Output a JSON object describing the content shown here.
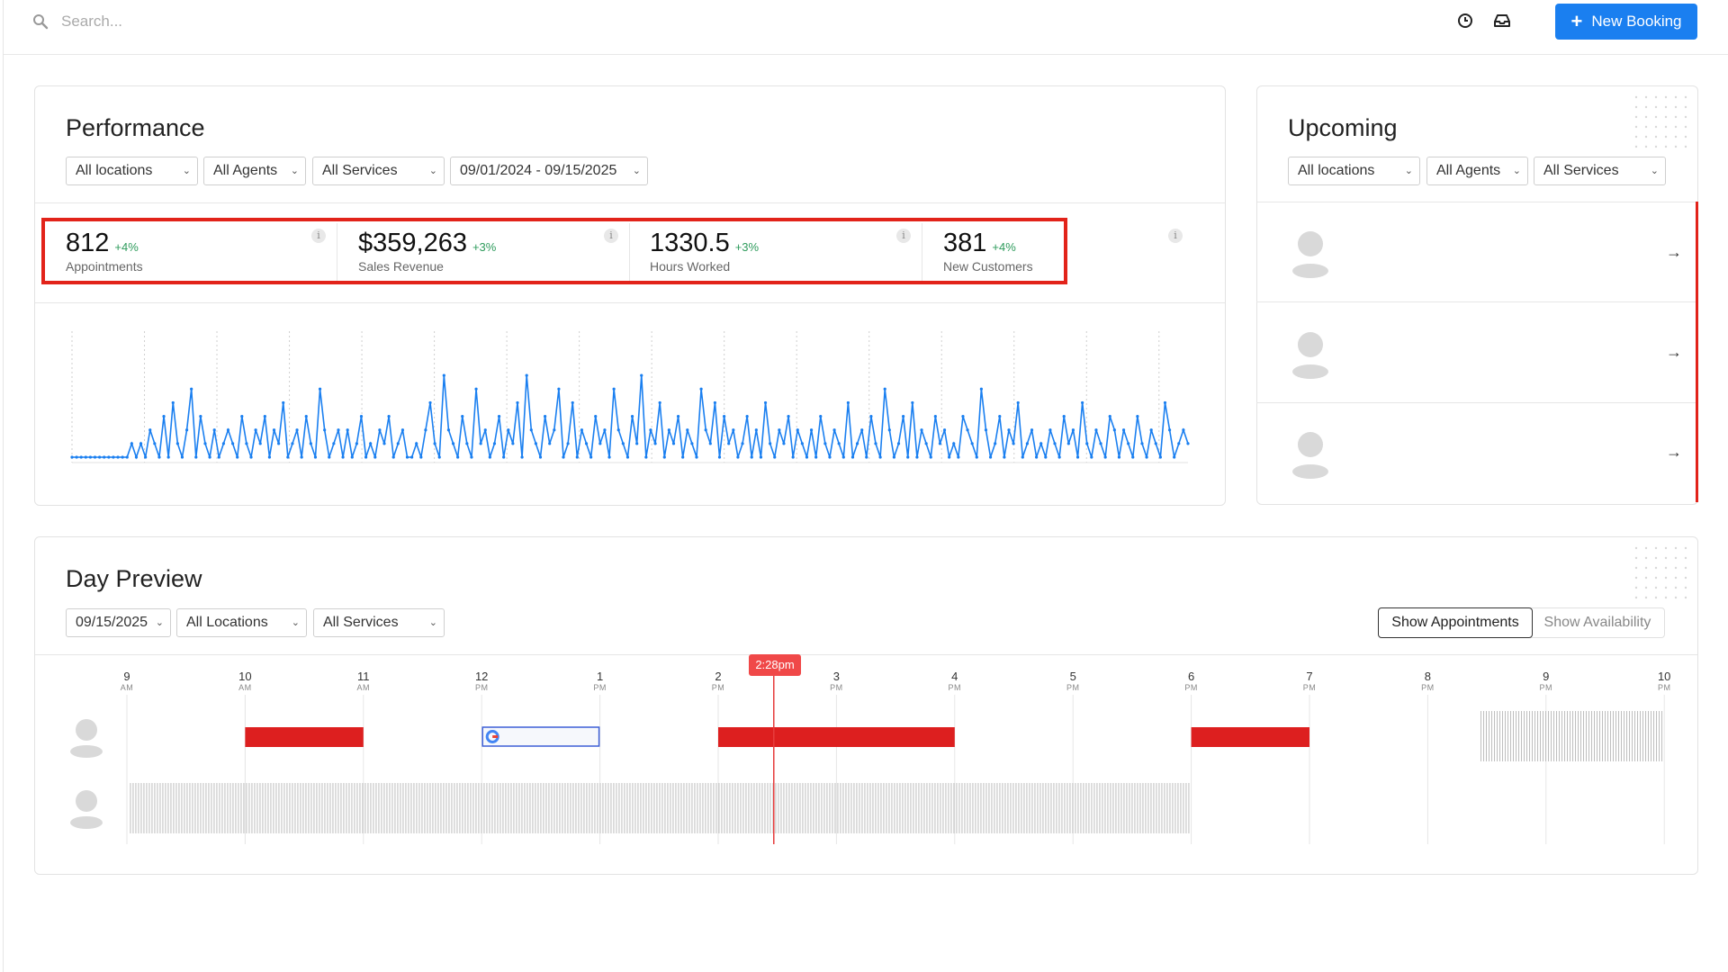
{
  "topbar": {
    "search_placeholder": "Search...",
    "icons": [
      "search-icon",
      "clock-icon",
      "inbox-icon"
    ],
    "new_booking_label": "New Booking"
  },
  "performance": {
    "title": "Performance",
    "filters": [
      "All locations",
      "All Agents",
      "All Services",
      "09/01/2024 - 09/15/2025"
    ],
    "stats": [
      {
        "value": "812",
        "delta": "+4%",
        "label": "Appointments"
      },
      {
        "value": "$359,263",
        "delta": "+3%",
        "label": "Sales Revenue"
      },
      {
        "value": "1330.5",
        "delta": "+3%",
        "label": "Hours Worked"
      },
      {
        "value": "381",
        "delta": "+4%",
        "label": "New Customers"
      }
    ],
    "info_glyph": "i"
  },
  "chart_data": {
    "type": "line",
    "title": "",
    "xlabel": "",
    "ylabel": "",
    "grid": true,
    "series_color": "#1a7ff0",
    "values": [
      0,
      0,
      0,
      0,
      0,
      0,
      0,
      0,
      0,
      0,
      0,
      0,
      0,
      1,
      0,
      1,
      0,
      2,
      1,
      0,
      3,
      0,
      4,
      1,
      0,
      2,
      5,
      0,
      3,
      1,
      0,
      2,
      0,
      1,
      2,
      1,
      0,
      3,
      1,
      0,
      2,
      1,
      3,
      0,
      2,
      1,
      4,
      0,
      1,
      2,
      0,
      3,
      1,
      0,
      5,
      2,
      0,
      1,
      2,
      0,
      2,
      0,
      1,
      3,
      0,
      1,
      0,
      2,
      1,
      3,
      0,
      1,
      2,
      0,
      0,
      1,
      0,
      2,
      4,
      1,
      0,
      6,
      2,
      1,
      0,
      3,
      1,
      0,
      5,
      1,
      2,
      0,
      1,
      3,
      0,
      2,
      1,
      4,
      0,
      6,
      2,
      1,
      0,
      3,
      1,
      2,
      5,
      0,
      1,
      4,
      0,
      2,
      1,
      0,
      3,
      1,
      2,
      0,
      5,
      2,
      1,
      0,
      3,
      1,
      6,
      0,
      2,
      1,
      4,
      0,
      2,
      1,
      3,
      0,
      2,
      1,
      0,
      5,
      2,
      1,
      4,
      0,
      3,
      1,
      2,
      0,
      1,
      3,
      0,
      2,
      0,
      4,
      1,
      0,
      2,
      1,
      3,
      0,
      2,
      1,
      0,
      2,
      0,
      3,
      1,
      0,
      2,
      1,
      0,
      4,
      0,
      1,
      2,
      0,
      3,
      1,
      0,
      5,
      2,
      0,
      1,
      3,
      0,
      4,
      0,
      2,
      1,
      0,
      3,
      1,
      2,
      0,
      1,
      0,
      3,
      2,
      1,
      0,
      5,
      2,
      0,
      1,
      3,
      0,
      2,
      1,
      4,
      0,
      1,
      2,
      0,
      1,
      0,
      2,
      1,
      0,
      3,
      1,
      2,
      0,
      4,
      1,
      0,
      2,
      1,
      0,
      3,
      2,
      0,
      2,
      1,
      0,
      3,
      1,
      0,
      2,
      1,
      0,
      4,
      2,
      0,
      1,
      2,
      1
    ],
    "ylim": [
      0,
      7
    ],
    "vertical_gridlines": 16
  },
  "upcoming": {
    "title": "Upcoming",
    "filters": [
      "All locations",
      "All Agents",
      "All Services"
    ],
    "rows": [
      {
        "arrow": "→"
      },
      {
        "arrow": "→"
      },
      {
        "arrow": "→"
      }
    ]
  },
  "day_preview": {
    "title": "Day Preview",
    "filters": [
      "09/15/2025",
      "All Locations",
      "All Services"
    ],
    "toggle_active": "Show Appointments",
    "toggle_inactive": "Show Availability",
    "now_label": "2:28pm",
    "now_hour": 14.47,
    "hours": [
      {
        "h": "9",
        "ap": "AM"
      },
      {
        "h": "10",
        "ap": "AM"
      },
      {
        "h": "11",
        "ap": "AM"
      },
      {
        "h": "12",
        "ap": "PM"
      },
      {
        "h": "1",
        "ap": "PM"
      },
      {
        "h": "2",
        "ap": "PM"
      },
      {
        "h": "3",
        "ap": "PM"
      },
      {
        "h": "4",
        "ap": "PM"
      },
      {
        "h": "5",
        "ap": "PM"
      },
      {
        "h": "6",
        "ap": "PM"
      },
      {
        "h": "7",
        "ap": "PM"
      },
      {
        "h": "8",
        "ap": "PM"
      },
      {
        "h": "9",
        "ap": "PM"
      },
      {
        "h": "10",
        "ap": "PM"
      }
    ],
    "appointment_color": "#dd1f1f",
    "appointments_row1": [
      {
        "start": 10,
        "end": 11,
        "kind": "booked"
      },
      {
        "start": 12,
        "end": 13,
        "kind": "google-event"
      },
      {
        "start": 14,
        "end": 16,
        "kind": "booked"
      },
      {
        "start": 18,
        "end": 19,
        "kind": "booked"
      }
    ],
    "unavailable_row1": [
      {
        "start": 20.45,
        "end": 22
      }
    ],
    "unavailable_row2": [
      {
        "start": 9.03,
        "end": 18
      }
    ]
  }
}
